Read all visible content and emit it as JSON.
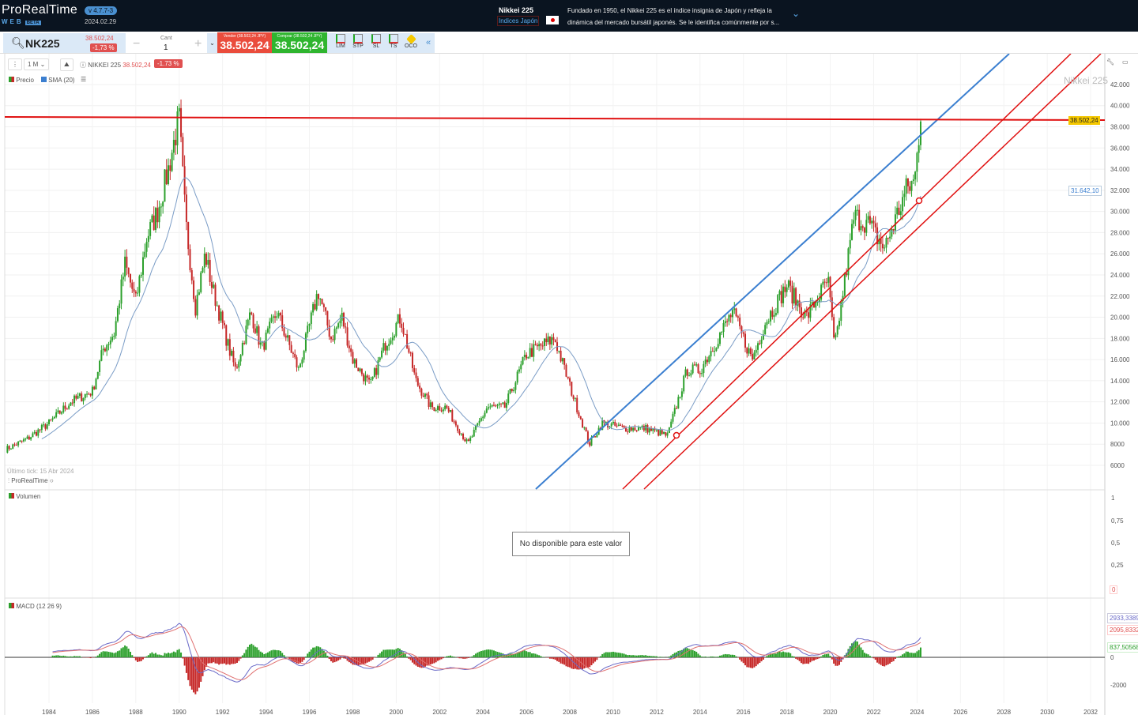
{
  "header": {
    "logo": "ProRealTime",
    "web": "WEB",
    "beta": "BETA",
    "version": "v 4.7.7-3",
    "date": "2024.02.29",
    "instrument_name": "Nikkei 225",
    "category": "Indices Japón",
    "description_1": "Fundado en 1950, el Nikkei 225 es el índice insignia de Japón y refleja la",
    "description_2": "dinámica del mercado bursátil japonés. Se le identifica comúnmente por s..."
  },
  "toolbar": {
    "symbol": "NK225",
    "price": "38.502,24",
    "change": "-1,73 %",
    "qty_label": "Cant",
    "qty_value": "1",
    "minus": "−",
    "plus": "+",
    "sell_label": "Vender (38.502,24 JPY)",
    "sell_price": "38.502,24",
    "buy_label": "Comprar (38.502,24 JPY)",
    "buy_price": "38.502,24",
    "orders": [
      "LIM",
      "STP",
      "SL",
      "TS",
      "OCO"
    ],
    "collapse": "«"
  },
  "chart": {
    "timeframe": "1 M",
    "instrument": "NIKKEI 225",
    "price": "38.502,24",
    "change": "-1.73 %",
    "legend_price": "Precio",
    "legend_sma": "SMA (20)",
    "watermark": "Nikkei 225",
    "last_tick": "Último tick: 15 Abr 2024",
    "brand": "ProRealTime",
    "current_price_tag": "38.502,24",
    "sma_tag": "31.642,10",
    "volume_title": "Volumen",
    "volume_message": "No disponible para este valor",
    "volume_axis": [
      "1",
      "0,75",
      "0,5",
      "0,25",
      "0"
    ],
    "macd_title": "MACD (12 26 9)",
    "macd_tags": [
      "2933,3389",
      "2095,8332",
      "837,50568"
    ],
    "macd_axis": [
      "0",
      "-2000"
    ],
    "colors": {
      "up": "#2ca02c",
      "down": "#c62828",
      "sma": "#7a9cc6",
      "trend_blue": "#3b7fd0",
      "trend_red": "#e01010"
    }
  },
  "chart_data": {
    "type": "candlestick",
    "title": "Nikkei 225",
    "timeframe": "monthly",
    "ylim": [
      6000,
      42000
    ],
    "y_ticks": [
      42000,
      40000,
      38000,
      36000,
      34000,
      32000,
      30000,
      28000,
      26000,
      24000,
      22000,
      20000,
      18000,
      16000,
      14000,
      12000,
      10000,
      8000,
      6000
    ],
    "x_ticks": [
      "1984",
      "1986",
      "1988",
      "1990",
      "1992",
      "1994",
      "1996",
      "1998",
      "2000",
      "2002",
      "2004",
      "2006",
      "2008",
      "2010",
      "2012",
      "2014",
      "2016",
      "2018",
      "2020",
      "2022",
      "2024",
      "2026",
      "2028",
      "2030",
      "2032"
    ],
    "close_approx": [
      [
        1982.0,
        7500
      ],
      [
        1983,
        8500
      ],
      [
        1984,
        10000
      ],
      [
        1985,
        12000
      ],
      [
        1986,
        13000
      ],
      [
        1986.5,
        17000
      ],
      [
        1987,
        18500
      ],
      [
        1987.5,
        25000
      ],
      [
        1988,
        21500
      ],
      [
        1988.5,
        27500
      ],
      [
        1989,
        30000
      ],
      [
        1989.5,
        34000
      ],
      [
        1989.99,
        38900
      ],
      [
        1990.3,
        29000
      ],
      [
        1990.75,
        21000
      ],
      [
        1991.2,
        26000
      ],
      [
        1991.5,
        23000
      ],
      [
        1992.3,
        17000
      ],
      [
        1992.6,
        15000
      ],
      [
        1993.3,
        20500
      ],
      [
        1993.8,
        17000
      ],
      [
        1994.5,
        20500
      ],
      [
        1995.5,
        15000
      ],
      [
        1996.4,
        22500
      ],
      [
        1997,
        18000
      ],
      [
        1997.5,
        20000
      ],
      [
        1998,
        16000
      ],
      [
        1998.8,
        13500
      ],
      [
        1999.5,
        17500
      ],
      [
        2000.2,
        20000
      ],
      [
        2000.9,
        14000
      ],
      [
        2001.6,
        11500
      ],
      [
        2002.3,
        11500
      ],
      [
        2003.3,
        8000
      ],
      [
        2004.2,
        11500
      ],
      [
        2005,
        11500
      ],
      [
        2006,
        16500
      ],
      [
        2007.3,
        18000
      ],
      [
        2008,
        13500
      ],
      [
        2008.9,
        8000
      ],
      [
        2009.5,
        10000
      ],
      [
        2010.5,
        9500
      ],
      [
        2011.5,
        9500
      ],
      [
        2012.5,
        8800
      ],
      [
        2013.4,
        15000
      ],
      [
        2014,
        15000
      ],
      [
        2015.5,
        20500
      ],
      [
        2016.4,
        16000
      ],
      [
        2017,
        19500
      ],
      [
        2018,
        23000
      ],
      [
        2018.9,
        20000
      ],
      [
        2019.9,
        23500
      ],
      [
        2020.2,
        17000
      ],
      [
        2021.1,
        29500
      ],
      [
        2021.7,
        29000
      ],
      [
        2022.5,
        26500
      ],
      [
        2023.5,
        32000
      ],
      [
        2023.9,
        33000
      ],
      [
        2024.2,
        40000
      ]
    ],
    "last_price": 38502.24,
    "sma_period": 20,
    "macd": [
      12,
      26,
      9
    ]
  }
}
